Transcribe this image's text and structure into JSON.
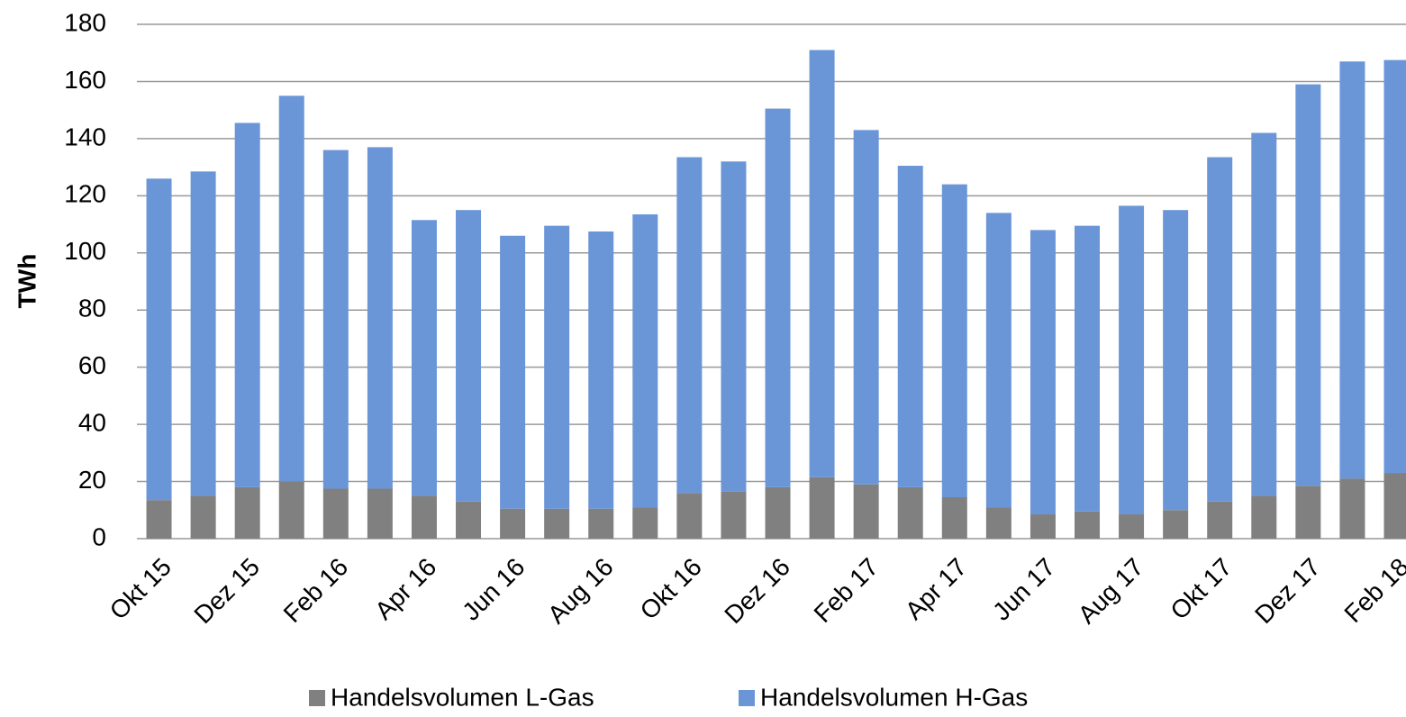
{
  "chart_data": {
    "type": "bar",
    "stacked": true,
    "y_label": "TWh",
    "categories": [
      "Okt 15",
      null,
      "Dez 15",
      null,
      "Feb 16",
      null,
      "Apr 16",
      null,
      "Jun 16",
      null,
      "Aug 16",
      null,
      "Okt 16",
      null,
      "Dez 16",
      null,
      "Feb 17",
      null,
      "Apr 17",
      null,
      "Jun 17",
      null,
      "Aug 17",
      null,
      "Okt 17",
      null,
      "Dez 17",
      null,
      "Feb 18"
    ],
    "series": [
      {
        "name": "Handelsvolumen L-Gas",
        "color": "#808080",
        "values": [
          13.5,
          15,
          18,
          20,
          17.5,
          17.5,
          15,
          13,
          10.5,
          10.5,
          10.5,
          11,
          16,
          16.5,
          18,
          21.5,
          19,
          18,
          14.5,
          11,
          8.5,
          9.5,
          8.5,
          10,
          13,
          15,
          18.5,
          21,
          23
        ]
      },
      {
        "name": "Handelsvolumen H-Gas",
        "color": "#6a96d8",
        "values": [
          112.5,
          113.5,
          127.5,
          135,
          118.5,
          119.5,
          96.5,
          102,
          95.5,
          99,
          97,
          102.5,
          117.5,
          115.5,
          132.5,
          149.5,
          124,
          112.5,
          109.5,
          103,
          99.5,
          100,
          108,
          105,
          120.5,
          127,
          140.5,
          146,
          144.5
        ]
      }
    ],
    "ylim": [
      0,
      180
    ],
    "yticks": [
      0,
      20,
      40,
      60,
      80,
      100,
      120,
      140,
      160,
      180
    ],
    "grid": true,
    "legend": "bottom"
  }
}
